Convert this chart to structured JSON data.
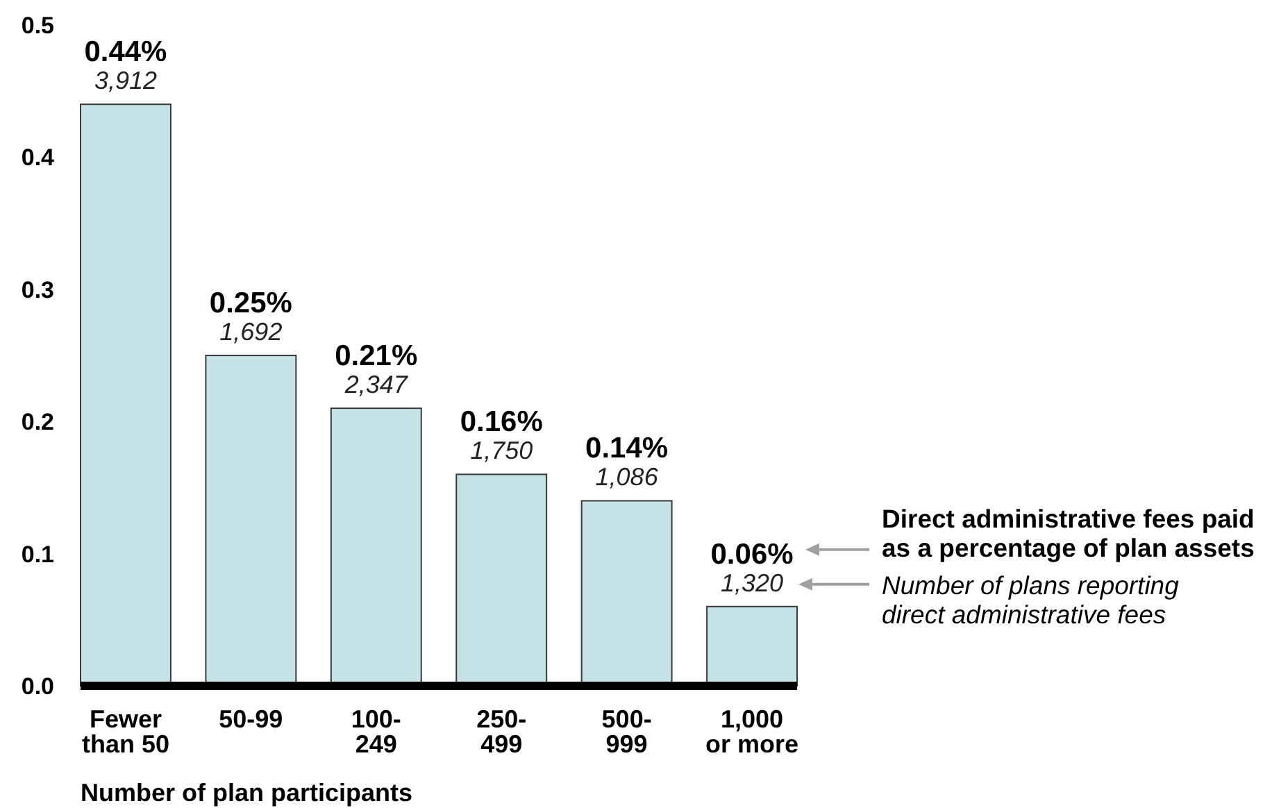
{
  "chart_data": {
    "type": "bar",
    "xlabel": "Number of plan participants",
    "categories": [
      "Fewer\nthan 50",
      "50-99",
      "100-\n249",
      "250-\n499",
      "500-\n999",
      "1,000\nor more"
    ],
    "values": [
      0.44,
      0.25,
      0.21,
      0.16,
      0.14,
      0.06
    ],
    "color": "#c5e3e7",
    "value_labels": [
      "0.44%",
      "0.25%",
      "0.21%",
      "0.16%",
      "0.14%",
      "0.06%"
    ],
    "ylim": [
      0,
      0.5
    ],
    "yticks": [
      {
        "value": 0,
        "label": "0.0"
      },
      0.1,
      0.2,
      0.3,
      0.4,
      0.5
    ],
    "annotations": [
      {
        "text": "3,912",
        "x": "Fewer\nthan 50",
        "y": 0.44
      },
      {
        "text": "1,692",
        "x": "50-99",
        "y": 0.25
      },
      {
        "text": "2,347",
        "x": "100-\n249",
        "y": 0.21
      },
      {
        "text": "1,750",
        "x": "250-\n499",
        "y": 0.16
      },
      {
        "text": "1,086",
        "x": "500-\n999",
        "y": 0.14
      },
      {
        "text": "1,320",
        "x": "1,000\nor more",
        "y": 0.06
      },
      "Direct administrative fees paid\nas a percentage of plan assets",
      "Number of plans reporting\ndirect administrative fees"
    ]
  }
}
